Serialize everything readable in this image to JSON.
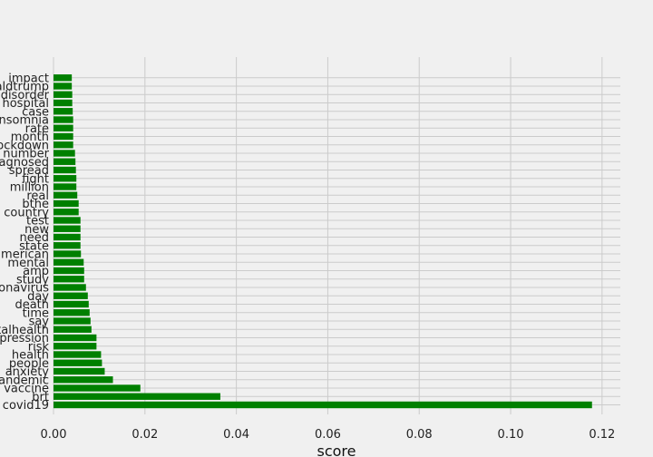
{
  "chart_data": {
    "type": "bar",
    "orientation": "horizontal",
    "title": "",
    "xlabel": "score",
    "ylabel": "",
    "xlim": [
      0,
      0.124
    ],
    "xticks": [
      0.0,
      0.02,
      0.04,
      0.06,
      0.08,
      0.1,
      0.12
    ],
    "xtick_labels": [
      "0.00",
      "0.02",
      "0.04",
      "0.06",
      "0.08",
      "0.10",
      "0.12"
    ],
    "grid": true,
    "bar_color": "#008000",
    "background_color": "#f0f0f0",
    "grid_color": "#cbcbcb",
    "categories": [
      "covid19",
      "brt",
      "vaccine",
      "pandemic",
      "anxiety",
      "people",
      "health",
      "risk",
      "depression",
      "mentalhealth",
      "say",
      "time",
      "death",
      "day",
      "coronavirus",
      "study",
      "amp",
      "mental",
      "american",
      "state",
      "need",
      "new",
      "test",
      "country",
      "bthe",
      "real",
      "million",
      "fight",
      "spread",
      "diagnosed",
      "number",
      "lockdown",
      "month",
      "rate",
      "insomnia",
      "case",
      "hospital",
      "disorder",
      "realdtrump",
      "impact"
    ],
    "values": [
      0.1178,
      0.0365,
      0.019,
      0.013,
      0.0112,
      0.0106,
      0.0104,
      0.0094,
      0.0094,
      0.0083,
      0.0081,
      0.0079,
      0.0077,
      0.0075,
      0.0071,
      0.0067,
      0.0067,
      0.0066,
      0.006,
      0.0059,
      0.0059,
      0.0059,
      0.0059,
      0.0055,
      0.0055,
      0.0052,
      0.005,
      0.005,
      0.0049,
      0.0048,
      0.0047,
      0.0043,
      0.0043,
      0.0043,
      0.0043,
      0.0042,
      0.0041,
      0.0041,
      0.004,
      0.004
    ]
  }
}
